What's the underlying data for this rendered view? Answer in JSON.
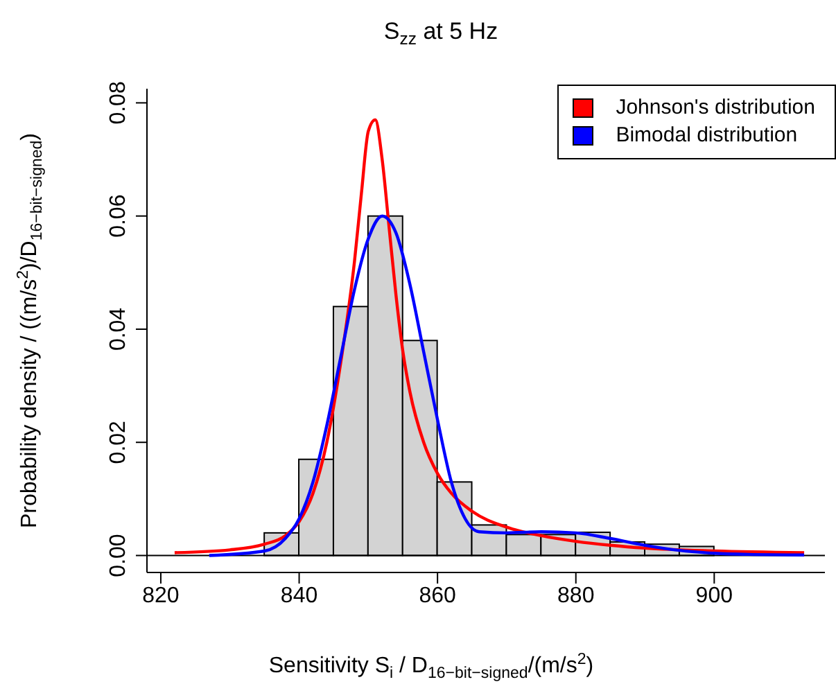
{
  "chart_data": {
    "type": "histogram",
    "title": "S$_{zz}$ at 5 Hz",
    "xlabel": "Sensitivity S$_{i}$ / D$_{16−bit−signed}$/(m/s$^{2}$)",
    "ylabel": "Probability density / ((m/s$^{2}$)/D$_{16−bit−signed}$)",
    "bins": [
      835,
      840,
      845,
      850,
      855,
      860,
      865,
      870,
      875,
      880,
      885,
      890,
      895,
      900
    ],
    "values": [
      0.004,
      0.017,
      0.044,
      0.06,
      0.038,
      0.013,
      0.0054,
      0.0037,
      0.0037,
      0.0041,
      0.0024,
      0.002,
      0.0016
    ],
    "color": "#d3d3d3",
    "series": [
      {
        "name": "Johnson's distribution",
        "type": "line",
        "color": "#ff0000",
        "x": [
          822,
          830,
          835,
          838,
          840,
          842,
          844,
          846,
          848,
          849,
          850,
          851,
          852,
          853,
          854,
          855,
          856,
          858,
          860,
          862,
          865,
          870,
          875,
          880,
          885,
          890,
          900,
          913
        ],
        "values": [
          0.0005,
          0.001,
          0.002,
          0.0035,
          0.006,
          0.011,
          0.02,
          0.034,
          0.052,
          0.064,
          0.075,
          0.077,
          0.07,
          0.058,
          0.046,
          0.036,
          0.029,
          0.02,
          0.0145,
          0.011,
          0.0078,
          0.005,
          0.0035,
          0.0025,
          0.0018,
          0.0013,
          0.0008,
          0.0005
        ]
      },
      {
        "name": "Bimodal distribution",
        "type": "line",
        "color": "#0000ff",
        "x": [
          827,
          835,
          838,
          840,
          842,
          844,
          846,
          848,
          850,
          852,
          854,
          856,
          858,
          860,
          862,
          864,
          866,
          870,
          875,
          880,
          885,
          890,
          895,
          900,
          905,
          913
        ],
        "values": [
          0,
          0.0008,
          0.003,
          0.0065,
          0.013,
          0.023,
          0.035,
          0.047,
          0.056,
          0.06,
          0.057,
          0.048,
          0.036,
          0.024,
          0.013,
          0.0065,
          0.0042,
          0.004,
          0.0042,
          0.004,
          0.003,
          0.0018,
          0.0009,
          0.0004,
          0.0002,
          0.0001
        ]
      }
    ],
    "xlim": [
      818,
      916
    ],
    "xticks": [
      820,
      840,
      860,
      880,
      900
    ],
    "ylim": [
      -0.003,
      0.0825
    ],
    "yticks": [
      {
        "value": 0,
        "label": "0.00"
      },
      {
        "value": 0.02,
        "label": "0.02"
      },
      {
        "value": 0.04,
        "label": "0.04"
      },
      {
        "value": 0.06,
        "label": "0.06"
      },
      {
        "value": 0.08,
        "label": "0.08"
      }
    ],
    "ref_lines": [
      {
        "axis": "y",
        "value": 0,
        "label": null,
        "color": "#000000"
      }
    ],
    "grid": false,
    "legend": "top right"
  }
}
